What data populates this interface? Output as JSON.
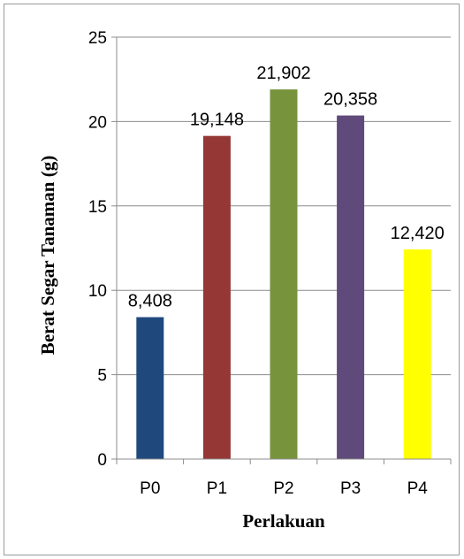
{
  "chart_data": {
    "type": "bar",
    "categories": [
      "P0",
      "P1",
      "P2",
      "P3",
      "P4"
    ],
    "values": [
      8.408,
      19.148,
      21.902,
      20.358,
      12.42
    ],
    "data_labels": [
      "8,408",
      "19,148",
      "21,902",
      "20,358",
      "12,420"
    ],
    "colors": [
      "#1f497d",
      "#953735",
      "#77933c",
      "#604a7b",
      "#ffff00"
    ],
    "xlabel": "Perlakuan",
    "ylabel": "Berat Segar Tanaman (g)",
    "ylim": [
      0,
      25
    ],
    "yticks": [
      0,
      5,
      10,
      15,
      20,
      25
    ],
    "grid": "horizontal",
    "legend": "none"
  }
}
